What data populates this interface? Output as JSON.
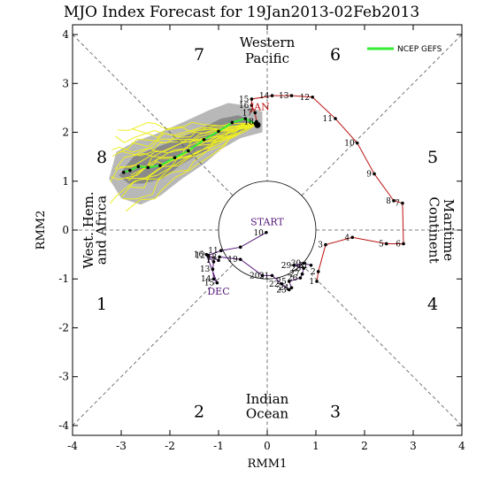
{
  "chart_data": {
    "type": "line",
    "title": "MJO Index Forecast for 19Jan2013-02Feb2013",
    "xlabel": "RMM1",
    "ylabel": "RMM2",
    "xlim": [
      -4,
      4
    ],
    "ylim": [
      -4.2,
      4.2
    ],
    "x_ticks": [
      "-4",
      "-3",
      "-2",
      "-1",
      "0",
      "1",
      "2",
      "3",
      "4"
    ],
    "y_ticks": [
      "-4",
      "-3",
      "-2",
      "-1",
      "0",
      "1",
      "2",
      "3",
      "4"
    ],
    "phases": [
      {
        "label": "1",
        "x": -3.4,
        "y": -1.5
      },
      {
        "label": "2",
        "x": -1.4,
        "y": -3.7
      },
      {
        "label": "3",
        "x": 1.4,
        "y": -3.7
      },
      {
        "label": "4",
        "x": 3.4,
        "y": -1.5
      },
      {
        "label": "5",
        "x": 3.4,
        "y": 1.5
      },
      {
        "label": "6",
        "x": 1.4,
        "y": 3.6
      },
      {
        "label": "7",
        "x": -1.4,
        "y": 3.6
      },
      {
        "label": "8",
        "x": -3.4,
        "y": 1.5
      }
    ],
    "regions": {
      "western_pacific": [
        "Western",
        "Pacific"
      ],
      "indian_ocean": [
        "Indian",
        "Ocean"
      ],
      "maritime_continent": [
        "Maritime",
        "Continent"
      ],
      "west_hem": [
        "West. Hem.",
        "and Africa"
      ]
    },
    "legend": [
      {
        "name": "NCEP GEFS",
        "color": "#33ee33"
      }
    ],
    "observed_dec": {
      "label": "DEC",
      "color": "#55177a",
      "points": [
        {
          "x": -0.02,
          "y": -0.05,
          "label": "10"
        },
        {
          "x": -0.55,
          "y": -0.35,
          "label": ""
        },
        {
          "x": -0.95,
          "y": -0.42,
          "label": "11"
        },
        {
          "x": -1.22,
          "y": -0.52,
          "label": "12"
        },
        {
          "x": -1.1,
          "y": -0.65,
          "label": ""
        },
        {
          "x": -1.12,
          "y": -0.8,
          "label": "13"
        },
        {
          "x": -1.1,
          "y": -1.0,
          "label": "14"
        },
        {
          "x": -1.03,
          "y": -1.08,
          "label": "15"
        },
        {
          "x": -1.25,
          "y": -0.5,
          "label": "16"
        },
        {
          "x": -1.0,
          "y": -0.62,
          "label": "17"
        },
        {
          "x": -0.98,
          "y": -0.55,
          "label": "18"
        },
        {
          "x": -0.55,
          "y": -0.6,
          "label": "19"
        },
        {
          "x": -0.1,
          "y": -0.93,
          "label": "20"
        },
        {
          "x": 0.1,
          "y": -0.93,
          "label": "21"
        },
        {
          "x": 0.3,
          "y": -1.1,
          "label": "22"
        },
        {
          "x": 0.45,
          "y": -1.22,
          "label": "23"
        },
        {
          "x": 0.5,
          "y": -1.18,
          "label": "24"
        },
        {
          "x": 0.45,
          "y": -1.05,
          "label": "25"
        },
        {
          "x": 0.68,
          "y": -0.98,
          "label": "26"
        },
        {
          "x": 0.72,
          "y": -0.9,
          "label": "27"
        },
        {
          "x": 0.75,
          "y": -0.78,
          "label": "28"
        },
        {
          "x": 0.55,
          "y": -0.72,
          "label": "29"
        },
        {
          "x": 0.75,
          "y": -0.68,
          "label": "30"
        },
        {
          "x": 0.9,
          "y": -0.72,
          "label": "31"
        }
      ]
    },
    "observed_jan": {
      "label": "JAN",
      "color": "#bb1111",
      "points": [
        {
          "x": 1.02,
          "y": -1.05,
          "label": "1"
        },
        {
          "x": 1.05,
          "y": -0.85,
          "label": "2"
        },
        {
          "x": 1.2,
          "y": -0.3,
          "label": "3"
        },
        {
          "x": 1.75,
          "y": -0.15,
          "label": "4"
        },
        {
          "x": 2.45,
          "y": -0.28,
          "label": "5"
        },
        {
          "x": 2.8,
          "y": -0.28,
          "label": "6"
        },
        {
          "x": 2.78,
          "y": 0.55,
          "label": "7"
        },
        {
          "x": 2.6,
          "y": 0.6,
          "label": "8"
        },
        {
          "x": 2.2,
          "y": 1.15,
          "label": "9"
        },
        {
          "x": 1.85,
          "y": 1.78,
          "label": "10"
        },
        {
          "x": 1.4,
          "y": 2.28,
          "label": "11"
        },
        {
          "x": 0.93,
          "y": 2.72,
          "label": "12"
        },
        {
          "x": 0.5,
          "y": 2.75,
          "label": "13"
        },
        {
          "x": 0.1,
          "y": 2.75,
          "label": "14"
        },
        {
          "x": -0.32,
          "y": 2.68,
          "label": "15"
        },
        {
          "x": -0.32,
          "y": 2.55,
          "label": "16"
        },
        {
          "x": -0.25,
          "y": 2.4,
          "label": "17"
        },
        {
          "x": -0.22,
          "y": 2.22,
          "label": "18"
        },
        {
          "x": -0.2,
          "y": 2.15,
          "label": ""
        }
      ]
    },
    "start_label": "START",
    "ensemble_mean": {
      "name": "NCEP GEFS",
      "color": "#33ee33",
      "points": [
        {
          "x": -0.25,
          "y": 2.18
        },
        {
          "x": -0.45,
          "y": 2.28
        },
        {
          "x": -0.72,
          "y": 2.2
        },
        {
          "x": -1.0,
          "y": 2.02
        },
        {
          "x": -1.3,
          "y": 1.85
        },
        {
          "x": -1.62,
          "y": 1.62
        },
        {
          "x": -1.9,
          "y": 1.48
        },
        {
          "x": -2.2,
          "y": 1.32
        },
        {
          "x": -2.45,
          "y": 1.28
        },
        {
          "x": -2.65,
          "y": 1.3
        },
        {
          "x": -2.82,
          "y": 1.22
        },
        {
          "x": -2.95,
          "y": 1.18
        }
      ]
    }
  }
}
